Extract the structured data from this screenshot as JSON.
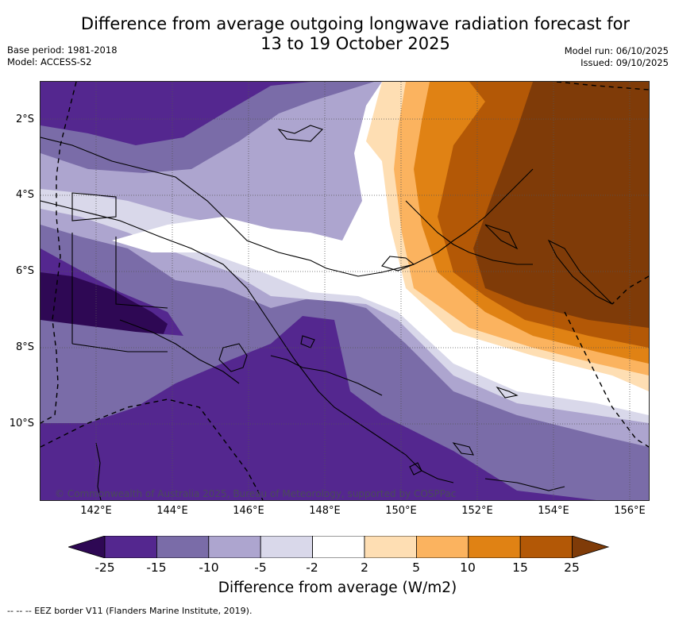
{
  "header": {
    "title_line1": "Difference from average outgoing longwave radiation forecast for",
    "title_line2": "13 to 19 October 2025",
    "base_period": "Base period: 1981-2018",
    "model": "Model: ACCESS-S2",
    "model_run": "Model run: 06/10/2025",
    "issued": "Issued: 09/10/2025"
  },
  "map": {
    "lat_ticks": [
      "2°S",
      "4°S",
      "6°S",
      "8°S",
      "10°S"
    ],
    "lon_ticks": [
      "142°E",
      "144°E",
      "146°E",
      "148°E",
      "150°E",
      "152°E",
      "154°E",
      "156°E"
    ],
    "copyright": "© Commonwealth of Australia 2025, Bureau of Meteorology, supported by COSPPac"
  },
  "colorbar": {
    "labels": [
      "-25",
      "-15",
      "-10",
      "-5",
      "-2",
      "2",
      "5",
      "10",
      "15",
      "25"
    ],
    "colors": [
      "#2e0854",
      "#54278f",
      "#7a6ca8",
      "#ada5cf",
      "#d9d8ea",
      "#ffffff",
      "#fedeb3",
      "#fbb35f",
      "#e08214",
      "#b35806",
      "#7f3b08"
    ],
    "title": "Difference from average (W/m2)"
  },
  "footnote": "--  --  -- EEZ border V11 (Flanders Marine Institute, 2019)."
}
